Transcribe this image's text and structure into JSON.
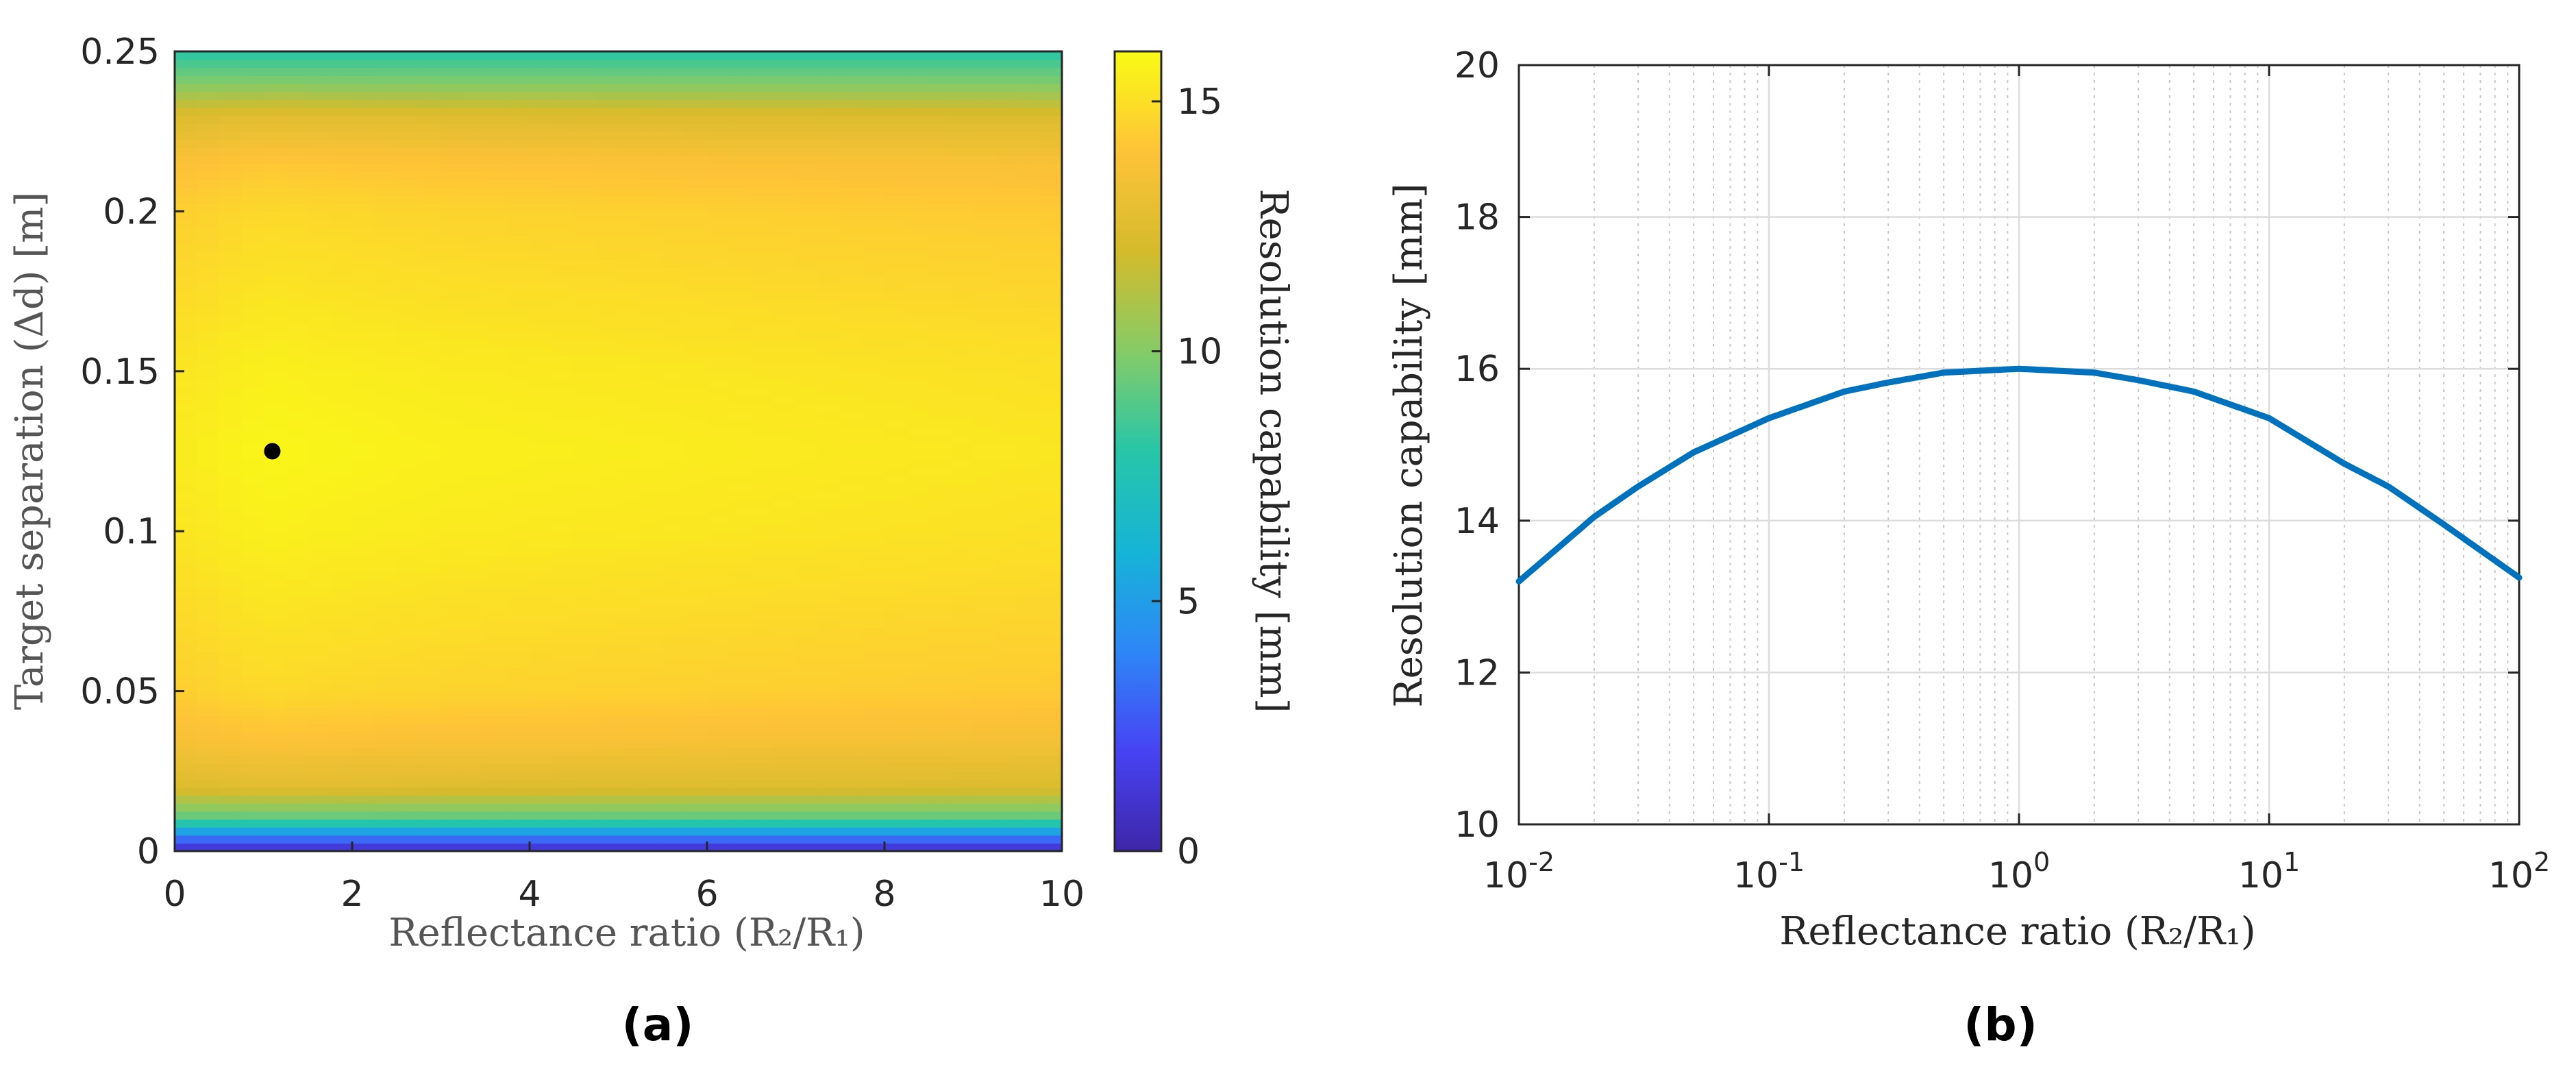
{
  "chart_data": [
    {
      "type": "heatmap",
      "panel_label": "(a)",
      "xlabel": "Reflectance ratio (R₂/R₁)",
      "ylabel": "Target separation (Δd) [m]",
      "xlim": [
        0,
        10
      ],
      "ylim": [
        0,
        0.25
      ],
      "x_ticks": [
        "0",
        "2",
        "4",
        "6",
        "8",
        "10"
      ],
      "y_ticks": [
        "0",
        "0.05",
        "0.1",
        "0.15",
        "0.2",
        "0.25"
      ],
      "colorbar": {
        "label": "Resolution capability [mm]",
        "range": [
          0,
          16
        ],
        "ticks": [
          "0",
          "5",
          "10",
          "15"
        ],
        "colormap": [
          "#3e26a8",
          "#4743f3",
          "#2e87f7",
          "#16b4d6",
          "#27c6a8",
          "#86cb67",
          "#d4bb2c",
          "#fec338",
          "#f9fb15"
        ]
      },
      "marker": {
        "x": 1.1,
        "y": 0.125,
        "color": "#000000"
      },
      "profile_y": {
        "y": [
          0,
          0.005,
          0.01,
          0.02,
          0.035,
          0.05,
          0.1,
          0.125,
          0.15,
          0.2,
          0.215,
          0.23,
          0.24,
          0.25
        ],
        "z": [
          0.5,
          4,
          9,
          12.5,
          13.8,
          14.6,
          15.4,
          15.6,
          15.4,
          14.6,
          14.0,
          12.5,
          10,
          8
        ]
      },
      "profile_x": {
        "x": [
          0,
          1,
          3,
          5,
          7,
          10
        ],
        "dz": [
          -0.2,
          0.2,
          0.0,
          -0.1,
          -0.2,
          -0.35
        ]
      }
    },
    {
      "type": "line",
      "panel_label": "(b)",
      "xlabel": "Reflectance ratio (R₂/R₁)",
      "ylabel": "Resolution capability [mm]",
      "xscale": "log",
      "xlim": [
        0.01,
        100
      ],
      "ylim": [
        10,
        20
      ],
      "x_ticks": [
        {
          "base": "10",
          "exp": "-2"
        },
        {
          "base": "10",
          "exp": "-1"
        },
        {
          "base": "10",
          "exp": "0"
        },
        {
          "base": "10",
          "exp": "1"
        },
        {
          "base": "10",
          "exp": "2"
        }
      ],
      "y_ticks": [
        "10",
        "12",
        "14",
        "16",
        "18",
        "20"
      ],
      "grid": true,
      "series": [
        {
          "name": "Resolution capability",
          "color": "#0072bd",
          "x": [
            0.01,
            0.02,
            0.03,
            0.05,
            0.1,
            0.2,
            0.3,
            0.5,
            1,
            2,
            3,
            5,
            10,
            20,
            30,
            50,
            100
          ],
          "y": [
            13.2,
            14.05,
            14.45,
            14.9,
            15.35,
            15.7,
            15.82,
            15.95,
            16.0,
            15.95,
            15.85,
            15.7,
            15.35,
            14.75,
            14.45,
            13.95,
            13.25
          ]
        }
      ]
    }
  ]
}
